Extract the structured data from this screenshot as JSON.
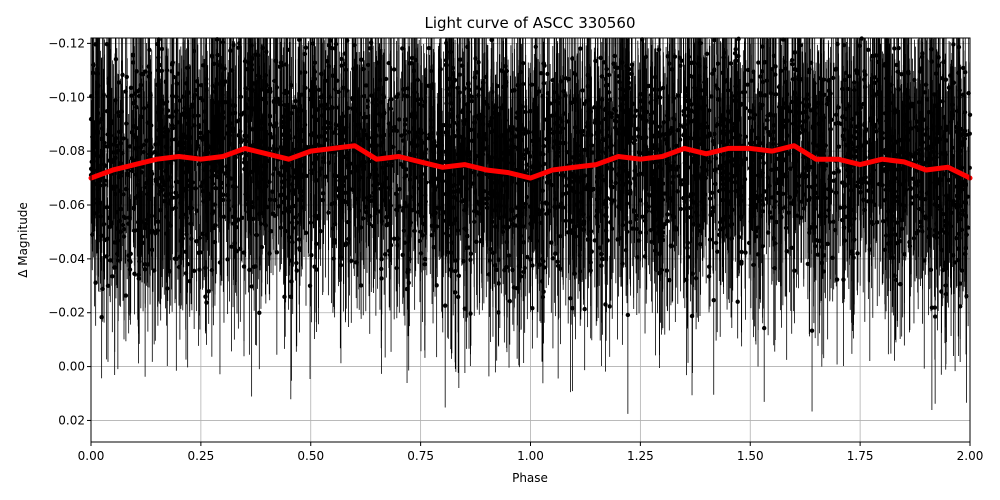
{
  "chart_data": {
    "type": "scatter",
    "title": "Light curve of ASCC 330560",
    "xlabel": "Phase",
    "ylabel": "Δ Magnitude",
    "xlim": [
      0.0,
      2.0
    ],
    "ylim": [
      0.028,
      -0.122
    ],
    "y_inverted": true,
    "grid": true,
    "x_ticks": [
      0.0,
      0.25,
      0.5,
      0.75,
      1.0,
      1.25,
      1.5,
      1.75,
      2.0
    ],
    "x_tick_labels": [
      "0.00",
      "0.25",
      "0.50",
      "0.75",
      "1.00",
      "1.25",
      "1.50",
      "1.75",
      "2.00"
    ],
    "y_ticks": [
      -0.12,
      -0.1,
      -0.08,
      -0.06,
      -0.04,
      -0.02,
      0.0,
      0.02
    ],
    "y_tick_labels": [
      "−0.12",
      "−0.10",
      "−0.08",
      "−0.06",
      "−0.04",
      "−0.02",
      "0.00",
      "0.02"
    ],
    "series": [
      {
        "kind": "points-with-errorbars",
        "color": "#000000",
        "note_count_approx": "several thousand points, spread roughly from 0.03 to -0.12"
      },
      {
        "kind": "binned-mean-line",
        "color": "#ff0000",
        "x": [
          0.0,
          0.05,
          0.1,
          0.15,
          0.2,
          0.25,
          0.3,
          0.35,
          0.4,
          0.45,
          0.5,
          0.55,
          0.6,
          0.65,
          0.7,
          0.75,
          0.8,
          0.85,
          0.9,
          0.95,
          1.0,
          1.05,
          1.1,
          1.15,
          1.2,
          1.25,
          1.3,
          1.35,
          1.4,
          1.45,
          1.5,
          1.55,
          1.6,
          1.65,
          1.7,
          1.75,
          1.8,
          1.85,
          1.9,
          1.95,
          2.0
        ],
        "y": [
          -0.07,
          -0.073,
          -0.075,
          -0.077,
          -0.078,
          -0.077,
          -0.078,
          -0.081,
          -0.079,
          -0.077,
          -0.08,
          -0.081,
          -0.082,
          -0.077,
          -0.078,
          -0.076,
          -0.074,
          -0.075,
          -0.073,
          -0.072,
          -0.07,
          -0.073,
          -0.074,
          -0.075,
          -0.078,
          -0.077,
          -0.078,
          -0.081,
          -0.079,
          -0.081,
          -0.081,
          -0.08,
          -0.082,
          -0.077,
          -0.077,
          -0.075,
          -0.077,
          -0.076,
          -0.073,
          -0.074,
          -0.07
        ]
      }
    ]
  }
}
